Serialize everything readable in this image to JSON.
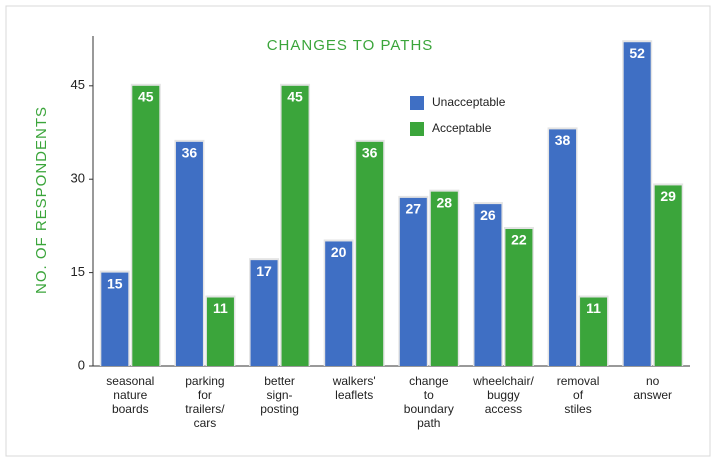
{
  "chart_data": {
    "type": "bar",
    "title": "CHANGES TO PATHS",
    "y_label": "NO. OF RESPONDENTS",
    "categories": [
      "seasonal\nnature\nboards",
      "parking\nfor\ntrailers/\ncars",
      "better\nsign-\nposting",
      "walkers'\nleaflets",
      "change\nto\nboundary\npath",
      "wheelchair/\nbuggy\naccess",
      "removal\nof\nstiles",
      "no\nanswer"
    ],
    "series": [
      {
        "name": "Unacceptable",
        "color": "#3f6fc4",
        "values": [
          15,
          36,
          17,
          20,
          27,
          26,
          38,
          52
        ]
      },
      {
        "name": "Acceptable",
        "color": "#3ba53b",
        "values": [
          45,
          11,
          45,
          36,
          28,
          22,
          11,
          29
        ]
      }
    ],
    "ylim": [
      0,
      53
    ],
    "yticks": [
      0,
      15,
      30,
      45
    ],
    "legend": "upper right"
  }
}
